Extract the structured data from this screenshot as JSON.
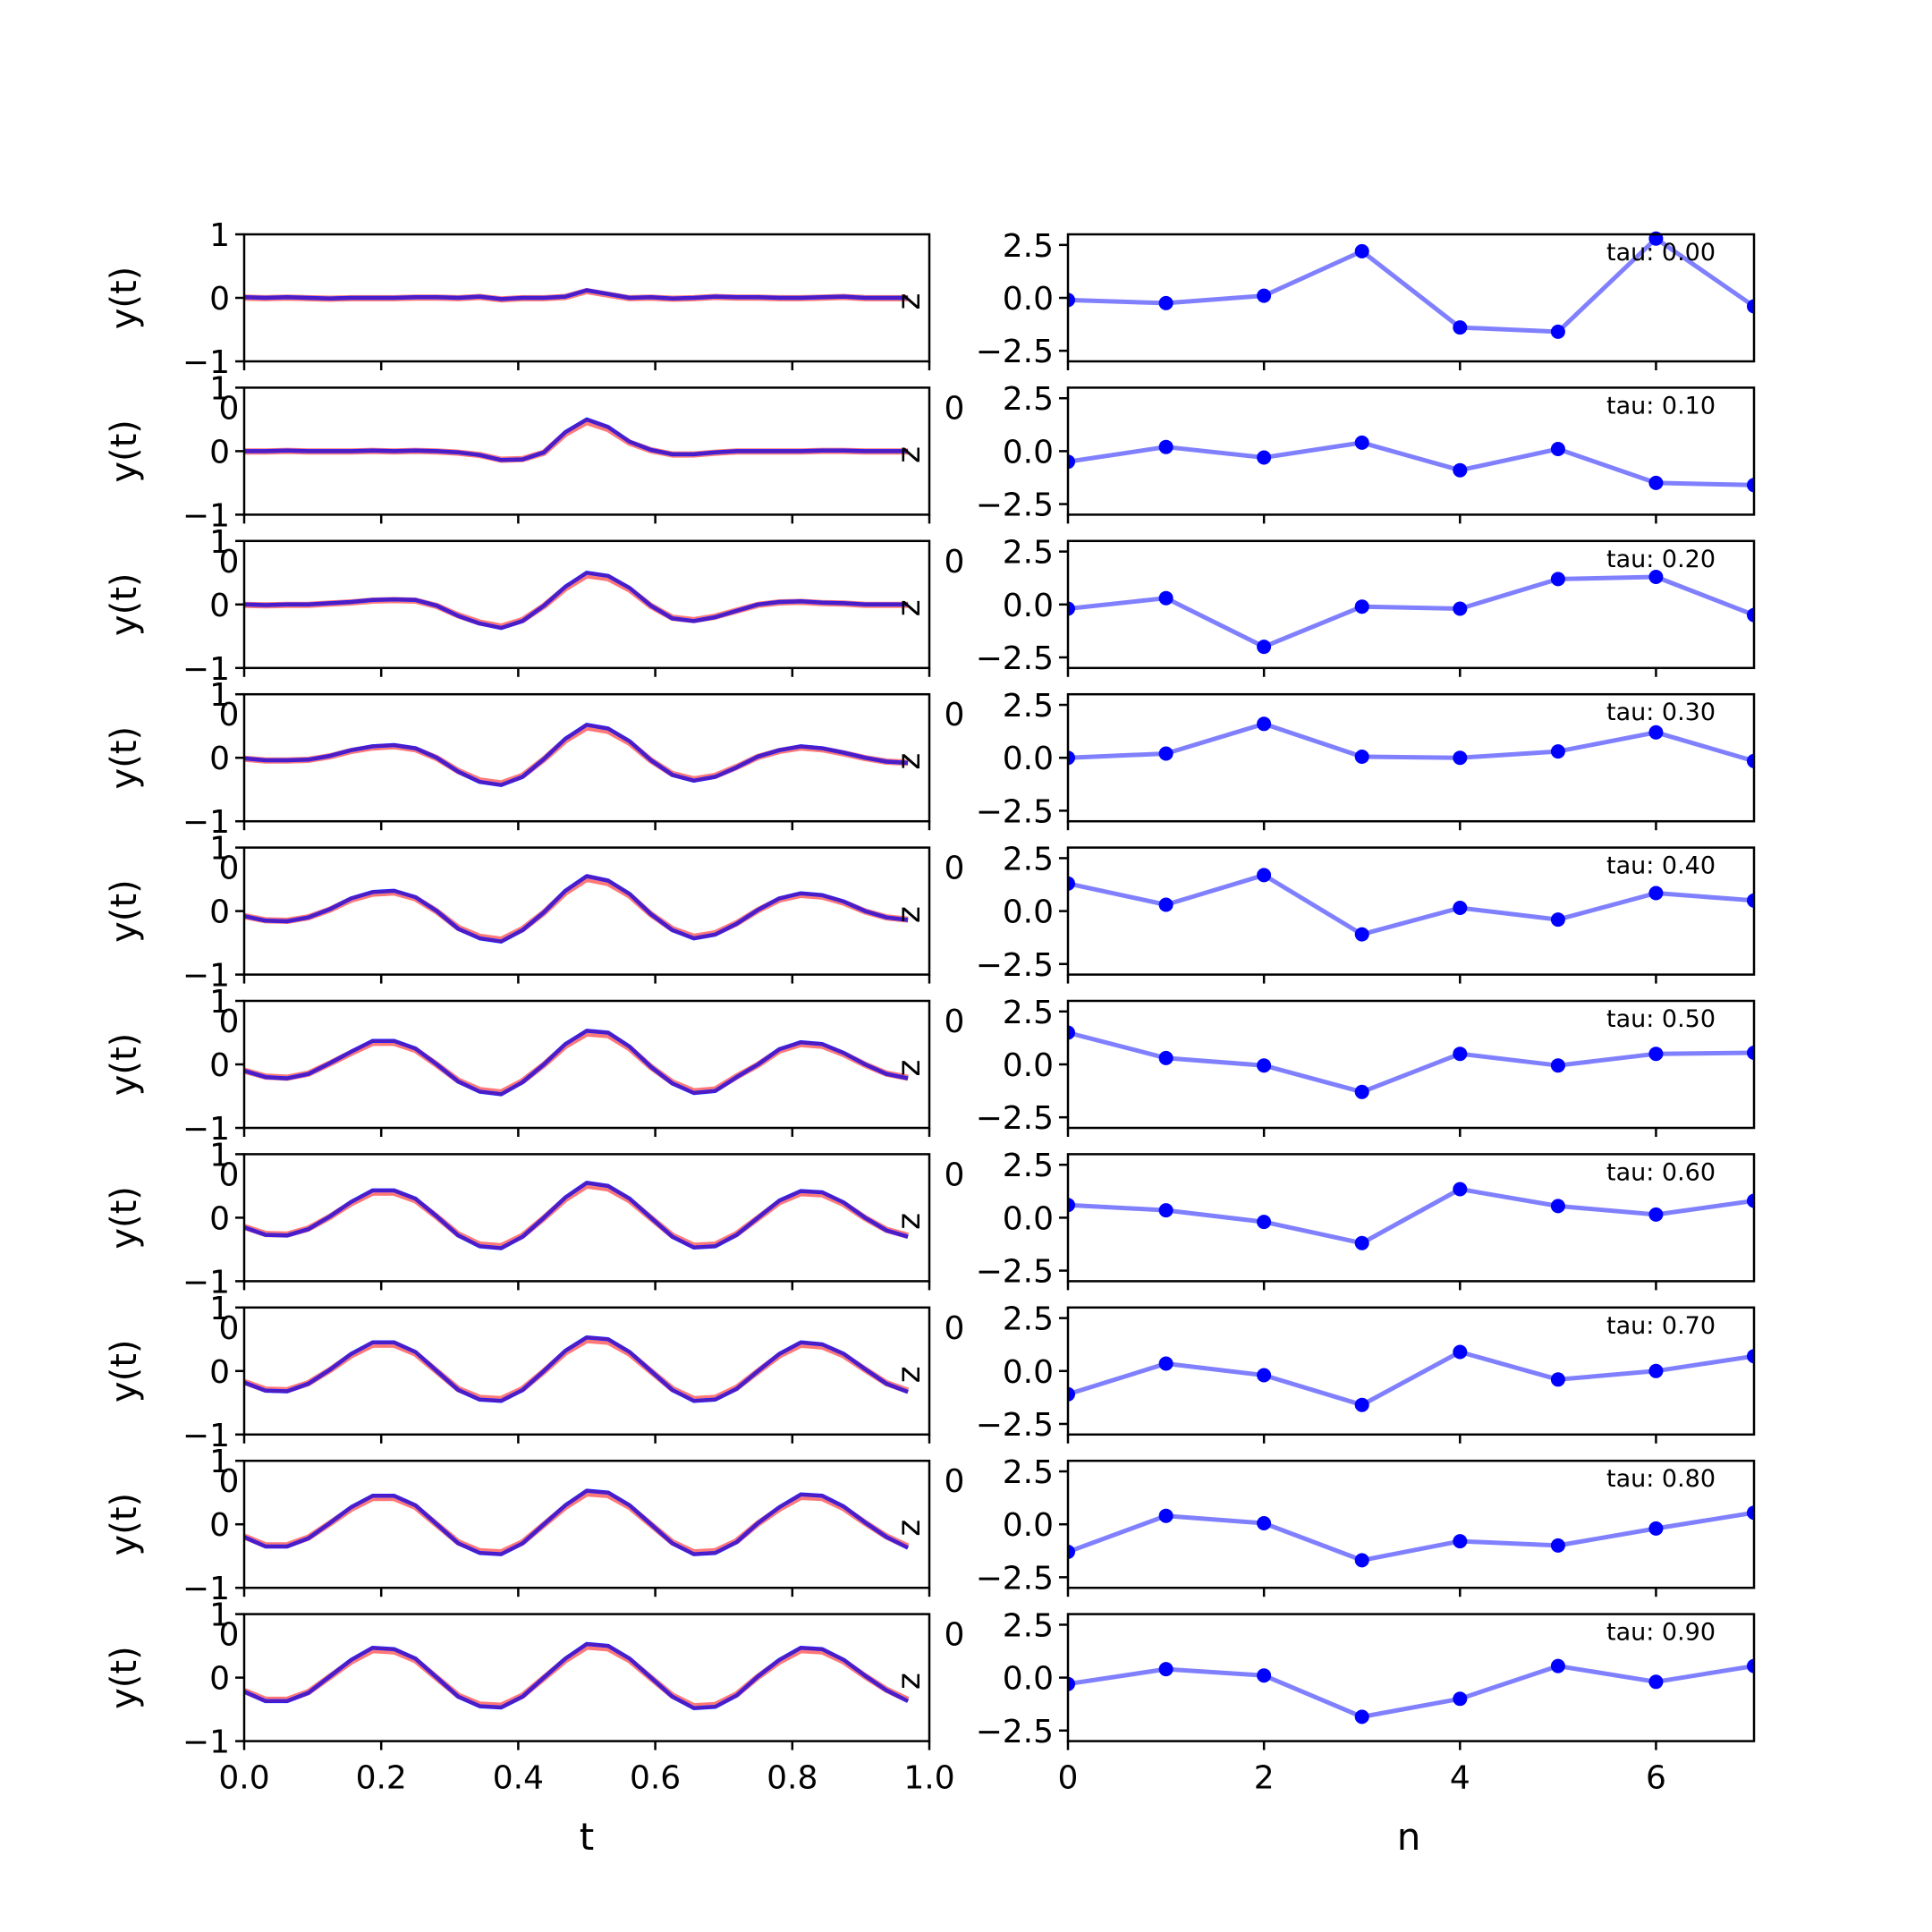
{
  "chart_data": [
    {
      "type": "line",
      "panel": "left",
      "ylabel": "y(t)",
      "xlabel": "t",
      "xlim": [
        0.0,
        1.0
      ],
      "ylim": [
        -1,
        1
      ],
      "xticks": [
        "0.0",
        "0.2",
        "0.4",
        "0.6",
        "0.8",
        "1.0"
      ],
      "yticks": [
        "1",
        "0",
        "−1"
      ],
      "overlap_labels": [
        "0",
        "0",
        "z"
      ],
      "x": [
        0.0,
        0.03125,
        0.0625,
        0.09375,
        0.125,
        0.15625,
        0.1875,
        0.21875,
        0.25,
        0.28125,
        0.3125,
        0.34375,
        0.375,
        0.40625,
        0.4375,
        0.46875,
        0.5,
        0.53125,
        0.5625,
        0.59375,
        0.625,
        0.65625,
        0.6875,
        0.71875,
        0.75,
        0.78125,
        0.8125,
        0.84375,
        0.875,
        0.90625,
        0.9375,
        0.96875
      ],
      "series_colors": {
        "target": "#ff6060",
        "output": "#2020ff",
        "overlap": "#7a1a8a"
      },
      "rows": [
        {
          "tau": 0.0,
          "values": [
            0.01,
            0.0,
            0.01,
            0.0,
            -0.01,
            0.0,
            0.0,
            0.0,
            0.01,
            0.01,
            0.0,
            0.02,
            -0.02,
            0.0,
            0.0,
            0.02,
            0.12,
            0.06,
            0.0,
            0.01,
            -0.01,
            0.0,
            0.02,
            0.01,
            0.01,
            0.0,
            0.0,
            0.01,
            0.02,
            0.0,
            0.0,
            0.0
          ]
        },
        {
          "tau": 0.1,
          "values": [
            0.0,
            0.0,
            0.01,
            0.0,
            0.0,
            0.0,
            0.01,
            0.0,
            0.01,
            0.0,
            -0.02,
            -0.06,
            -0.14,
            -0.13,
            -0.02,
            0.3,
            0.5,
            0.38,
            0.15,
            0.02,
            -0.05,
            -0.05,
            -0.02,
            0.0,
            0.0,
            0.0,
            0.0,
            0.01,
            0.01,
            0.0,
            0.0,
            0.0
          ]
        },
        {
          "tau": 0.2,
          "values": [
            0.0,
            -0.01,
            0.0,
            0.0,
            0.02,
            0.04,
            0.07,
            0.08,
            0.07,
            -0.02,
            -0.18,
            -0.3,
            -0.37,
            -0.26,
            -0.02,
            0.28,
            0.5,
            0.45,
            0.26,
            -0.02,
            -0.22,
            -0.26,
            -0.2,
            -0.1,
            0.0,
            0.04,
            0.05,
            0.03,
            0.02,
            0.0,
            0.0,
            0.0
          ]
        },
        {
          "tau": 0.3,
          "values": [
            -0.01,
            -0.04,
            -0.04,
            -0.03,
            0.03,
            0.12,
            0.18,
            0.2,
            0.15,
            0.0,
            -0.22,
            -0.38,
            -0.43,
            -0.3,
            -0.02,
            0.3,
            0.52,
            0.46,
            0.26,
            -0.04,
            -0.27,
            -0.36,
            -0.3,
            -0.15,
            0.02,
            0.12,
            0.18,
            0.15,
            0.08,
            0.0,
            -0.06,
            -0.08
          ]
        },
        {
          "tau": 0.4,
          "values": [
            -0.08,
            -0.15,
            -0.16,
            -0.1,
            0.03,
            0.2,
            0.3,
            0.32,
            0.22,
            0.0,
            -0.28,
            -0.43,
            -0.48,
            -0.3,
            -0.02,
            0.32,
            0.55,
            0.48,
            0.27,
            -0.05,
            -0.3,
            -0.43,
            -0.37,
            -0.2,
            0.02,
            0.2,
            0.28,
            0.25,
            0.15,
            0.0,
            -0.1,
            -0.14
          ]
        },
        {
          "tau": 0.5,
          "values": [
            -0.1,
            -0.2,
            -0.22,
            -0.15,
            0.02,
            0.2,
            0.37,
            0.37,
            0.25,
            0.0,
            -0.27,
            -0.43,
            -0.47,
            -0.28,
            0.0,
            0.32,
            0.53,
            0.5,
            0.28,
            -0.04,
            -0.3,
            -0.45,
            -0.42,
            -0.2,
            0.0,
            0.24,
            0.35,
            0.32,
            0.18,
            0.0,
            -0.15,
            -0.22
          ]
        },
        {
          "tau": 0.6,
          "values": [
            -0.15,
            -0.27,
            -0.28,
            -0.18,
            0.02,
            0.25,
            0.43,
            0.43,
            0.3,
            0.02,
            -0.28,
            -0.45,
            -0.48,
            -0.3,
            0.0,
            0.32,
            0.55,
            0.5,
            0.3,
            0.0,
            -0.3,
            -0.47,
            -0.45,
            -0.27,
            0.0,
            0.27,
            0.42,
            0.4,
            0.24,
            0.0,
            -0.2,
            -0.3
          ]
        },
        {
          "tau": 0.7,
          "values": [
            -0.18,
            -0.31,
            -0.32,
            -0.2,
            0.02,
            0.27,
            0.45,
            0.45,
            0.3,
            0.0,
            -0.3,
            -0.45,
            -0.47,
            -0.3,
            0.0,
            0.32,
            0.53,
            0.5,
            0.3,
            0.0,
            -0.3,
            -0.47,
            -0.45,
            -0.28,
            0.0,
            0.27,
            0.45,
            0.42,
            0.27,
            0.03,
            -0.2,
            -0.33
          ]
        },
        {
          "tau": 0.8,
          "values": [
            -0.2,
            -0.35,
            -0.35,
            -0.22,
            0.02,
            0.27,
            0.45,
            0.45,
            0.3,
            0.0,
            -0.3,
            -0.45,
            -0.47,
            -0.3,
            0.0,
            0.3,
            0.53,
            0.5,
            0.3,
            0.0,
            -0.3,
            -0.47,
            -0.45,
            -0.28,
            0.02,
            0.27,
            0.47,
            0.45,
            0.28,
            0.03,
            -0.2,
            -0.37
          ]
        },
        {
          "tau": 0.9,
          "values": [
            -0.22,
            -0.37,
            -0.37,
            -0.24,
            0.02,
            0.28,
            0.47,
            0.45,
            0.3,
            0.0,
            -0.3,
            -0.45,
            -0.47,
            -0.3,
            0.0,
            0.3,
            0.53,
            0.5,
            0.3,
            0.0,
            -0.3,
            -0.48,
            -0.46,
            -0.28,
            0.02,
            0.28,
            0.47,
            0.45,
            0.28,
            0.03,
            -0.2,
            -0.37
          ]
        }
      ]
    },
    {
      "type": "line",
      "panel": "right",
      "xlabel": "n",
      "xlim": [
        0,
        7
      ],
      "ylim": [
        -3,
        3
      ],
      "xticks": [
        "0",
        "2",
        "4",
        "6"
      ],
      "yticks": [
        "2.5",
        "0.0",
        "−2.5"
      ],
      "tau_prefix": "tau: ",
      "line_color": "#8080ff",
      "marker_color": "#0000ff",
      "x": [
        0,
        1,
        2,
        3,
        4,
        5,
        6,
        7
      ],
      "rows": [
        {
          "tau_label": "0.00",
          "values": [
            -0.1,
            -0.25,
            0.1,
            2.2,
            -1.4,
            -1.6,
            2.8,
            -0.4
          ]
        },
        {
          "tau_label": "0.10",
          "values": [
            -0.5,
            0.2,
            -0.3,
            0.4,
            -0.9,
            0.1,
            -1.5,
            -1.6
          ]
        },
        {
          "tau_label": "0.20",
          "values": [
            -0.2,
            0.3,
            -2.0,
            -0.1,
            -0.2,
            1.2,
            1.3,
            -0.5
          ]
        },
        {
          "tau_label": "0.30",
          "values": [
            0.0,
            0.2,
            1.6,
            0.05,
            0.0,
            0.3,
            1.2,
            -0.15
          ]
        },
        {
          "tau_label": "0.40",
          "values": [
            1.3,
            0.3,
            1.7,
            -1.1,
            0.15,
            -0.4,
            0.85,
            0.5
          ]
        },
        {
          "tau_label": "0.50",
          "values": [
            1.5,
            0.3,
            -0.05,
            -1.3,
            0.5,
            -0.05,
            0.5,
            0.55
          ]
        },
        {
          "tau_label": "0.60",
          "values": [
            0.6,
            0.35,
            -0.2,
            -1.2,
            1.35,
            0.55,
            0.15,
            0.8
          ]
        },
        {
          "tau_label": "0.70",
          "values": [
            -1.1,
            0.35,
            -0.2,
            -1.6,
            0.9,
            -0.4,
            0.0,
            0.7
          ]
        },
        {
          "tau_label": "0.80",
          "values": [
            -1.3,
            0.4,
            0.05,
            -1.7,
            -0.8,
            -1.0,
            -0.2,
            0.55
          ]
        },
        {
          "tau_label": "0.90",
          "values": [
            -0.3,
            0.4,
            0.1,
            -1.85,
            -1.0,
            0.55,
            -0.2,
            0.55
          ]
        }
      ]
    }
  ]
}
